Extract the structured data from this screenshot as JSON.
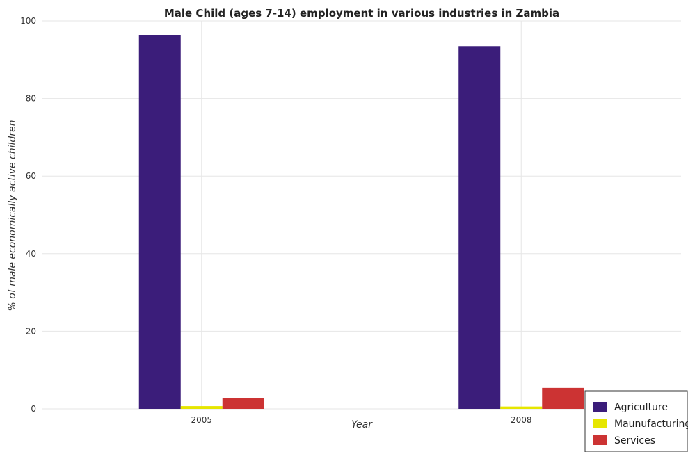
{
  "chart_data": {
    "type": "bar",
    "title": "Male Child (ages 7-14) employment in various industries in Zambia",
    "xlabel": "Year",
    "ylabel": "% of male economically active children",
    "categories": [
      "2005",
      "2008"
    ],
    "series": [
      {
        "name": "Agriculture",
        "color": "#3b1d7a",
        "values": [
          96.4,
          93.5
        ]
      },
      {
        "name": "Maunufacturing",
        "color": "#e6e600",
        "values": [
          0.7,
          0.6
        ]
      },
      {
        "name": "Services",
        "color": "#cc3333",
        "values": [
          2.8,
          5.4
        ]
      }
    ],
    "ylim": [
      0,
      100
    ],
    "yticks": [
      0,
      20,
      40,
      60,
      80,
      100
    ],
    "grid": true,
    "legend_position": "bottom-right"
  }
}
